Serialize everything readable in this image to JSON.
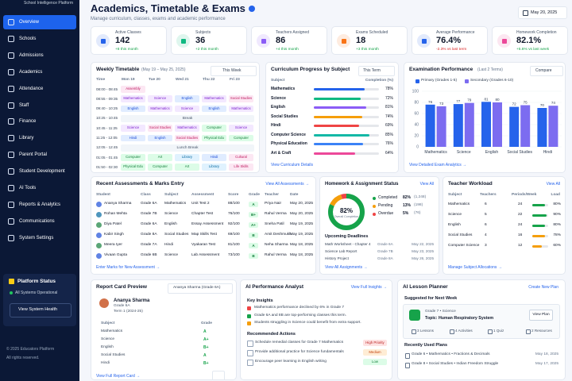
{
  "sidebar": {
    "brand": "School Intelligence Platform",
    "nav": [
      "Overview",
      "Schools",
      "Admissions",
      "Academics",
      "Attendance",
      "Staff",
      "Finance",
      "Library",
      "Parent Portal",
      "Student Development",
      "AI Tools",
      "Reports & Analytics",
      "Communications",
      "System Settings"
    ],
    "status": {
      "title": "Platform Status",
      "state": "All Systems Operational",
      "button": "View System Health"
    },
    "footer": [
      "© 2025 Educators Platform",
      "All rights reserved."
    ]
  },
  "header": {
    "title": "Academics, Timetable & Exams",
    "subtitle": "Manage curriculum, classes, exams and academic performance",
    "date": "May 20, 2025"
  },
  "kpis": [
    {
      "label": "Active Classes",
      "value": "142",
      "delta": "+8 this month",
      "color": "#2563eb"
    },
    {
      "label": "Subjects",
      "value": "36",
      "delta": "+2 this month",
      "color": "#10b981"
    },
    {
      "label": "Teachers Assigned",
      "value": "86",
      "delta": "+4 this month",
      "color": "#8b5cf6"
    },
    {
      "label": "Exams Scheduled",
      "value": "18",
      "delta": "+3 this month",
      "color": "#f97316"
    },
    {
      "label": "Average Performance",
      "value": "76.4%",
      "delta": "-2.3% vs last term",
      "color": "#2563eb"
    },
    {
      "label": "Homework Completion",
      "value": "82.1%",
      "delta": "+5.6% vs last week",
      "color": "#ec4899"
    }
  ],
  "timetable": {
    "title": "Weekly Timetable",
    "range": "(May 19 – May 25, 2025)",
    "filter": "This Week",
    "columns": [
      "Time",
      "Mon 19",
      "Tue 20",
      "Wed 21",
      "Thu 22",
      "Fri 23"
    ],
    "rows": [
      [
        "08:00 - 08:45",
        "Assembly",
        null,
        null,
        null,
        null
      ],
      [
        "08:55 - 09:35",
        "Mathematics",
        "Science",
        "English",
        "Mathematics",
        "Social Studies"
      ],
      [
        "09:40 - 10:25",
        "English",
        "Mathematics",
        "Science",
        "English",
        "Mathematics"
      ],
      [
        "10:25 - 10:45",
        "Break"
      ],
      [
        "10:45 - 11:25",
        "Science",
        "Social Studies",
        "Mathematics",
        "Computer",
        "Science"
      ],
      [
        "11:25 - 12:05",
        "Hindi",
        "English",
        "Social Studies",
        "Physical Edu",
        "Computer"
      ],
      [
        "12:05 - 12:45",
        "Lunch Break"
      ],
      [
        "01:05 - 01:45",
        "Computer",
        "Art",
        "Library",
        "Hindi",
        "Cultural"
      ],
      [
        "01:50 - 02:30",
        "Physical Edu",
        "Computer",
        "Art",
        "Library",
        "Life Skills"
      ]
    ]
  },
  "chart_data": [
    {
      "type": "hbar",
      "title": "Curriculum Progress by Subject",
      "filter": "This Term",
      "headers": [
        "Subject",
        "Completion (%)"
      ],
      "categories": [
        "Mathematics",
        "Science",
        "English",
        "Social Studies",
        "Hindi",
        "Computer Science",
        "Physical Education",
        "Art & Craft"
      ],
      "values": [
        78,
        72,
        81,
        74,
        69,
        85,
        76,
        64
      ],
      "value_labels": [
        "78%",
        "72%",
        "81%",
        "74%",
        "69%",
        "85%",
        "76%",
        "64%"
      ],
      "colors": [
        "#2563eb",
        "#10b981",
        "#8b5cf6",
        "#f59e0b",
        "#ef4444",
        "#14b8a6",
        "#3b82f6",
        "#ec4899"
      ],
      "xlim": [
        0,
        100
      ],
      "link": "View Curriculum Details"
    },
    {
      "type": "bar",
      "title": "Examination Performance",
      "subtitle": "(Last 2 Terms)",
      "filter": "Compare",
      "categories": [
        "Mathematics",
        "Science",
        "English",
        "Social Studies",
        "Hindi"
      ],
      "series": [
        {
          "name": "Primary (Grades 1-5)",
          "color": "#2563eb",
          "values": [
            76,
            77,
            81,
            72,
            70
          ]
        },
        {
          "name": "Secondary (Grades 6-10)",
          "color": "#7c6cf0",
          "values": [
            73,
            79,
            80,
            75,
            74
          ]
        }
      ],
      "ylim": [
        0,
        100
      ],
      "yticks": [
        0,
        20,
        40,
        60,
        80,
        100
      ],
      "grid": true,
      "link": "View Detailed Exam Analytics →"
    },
    {
      "type": "donut",
      "title": "Homework & Assignment Status",
      "link": "View All",
      "categories": [
        "Completed",
        "Pending",
        "Overdue"
      ],
      "values": [
        82,
        13,
        5
      ],
      "value_labels": [
        "82%",
        "13%",
        "5%"
      ],
      "counts": [
        "(1,248)",
        "(198)",
        "(76)"
      ],
      "colors": [
        "#16a34a",
        "#f59e0b",
        "#ef4444"
      ],
      "center_label": "Overall Completion"
    }
  ],
  "assessments": {
    "title": "Recent Assessments & Marks Entry",
    "link": "View All Assessments →",
    "columns": [
      "Student",
      "Class",
      "Subject",
      "Assessment",
      "Score",
      "Grade",
      "Teacher",
      "Date"
    ],
    "rows": [
      [
        "Ananya Sharma",
        "Grade 6A",
        "Mathematics",
        "Unit Test 2",
        "88/100",
        "A",
        "Priya Nair",
        "May 20, 2025"
      ],
      [
        "Rohan Mehta",
        "Grade 7B",
        "Science",
        "Chapter Test",
        "76/100",
        "B+",
        "Rahul Verma",
        "May 20, 2025"
      ],
      [
        "Diya Patel",
        "Grade 6A",
        "English",
        "Essay Assessment",
        "92/100",
        "A+",
        "Sneha Patil",
        "May 19, 2025"
      ],
      [
        "Kabir Singh",
        "Grade 8A",
        "Social Studies",
        "Map Skills Test",
        "69/100",
        "B",
        "Amit Deshmukh",
        "May 19, 2025"
      ],
      [
        "Meera Iyer",
        "Grade 7A",
        "Hindi",
        "Vyakaran Test",
        "81/100",
        "A",
        "Neha Sharma",
        "May 18, 2025"
      ],
      [
        "Vivaan Gupta",
        "Grade 6B",
        "Science",
        "Lab Assessment",
        "73/100",
        "B",
        "Rahul Verma",
        "May 18, 2025"
      ]
    ],
    "footer": "Enter Marks for New Assessment →"
  },
  "deadlines": {
    "title": "Upcoming Deadlines",
    "items": [
      [
        "Math Worksheet - Chapter 4",
        "Grade 6A",
        "May 22, 2025"
      ],
      [
        "Science Lab Report",
        "Grade 7B",
        "May 23, 2025"
      ],
      [
        "History Project",
        "Grade 8A",
        "May 26, 2025"
      ]
    ],
    "link": "View All Assignments →"
  },
  "workload": {
    "title": "Teacher Workload",
    "link": "View All",
    "columns": [
      "Subject",
      "Teachers",
      "Periods/Week",
      "Load"
    ],
    "rows": [
      [
        "Mathematics",
        "6",
        "24"
      ],
      [
        "Science",
        "5",
        "22"
      ],
      [
        "English",
        "6",
        "24"
      ],
      [
        "Social Studies",
        "4",
        "16"
      ],
      [
        "Computer Science",
        "3",
        "12"
      ]
    ],
    "load": [
      80,
      90,
      80,
      78,
      60
    ],
    "load_labels": [
      "80%",
      "90%",
      "80%",
      "78%",
      "60%"
    ],
    "footer": "Manage Subject Allocations →"
  },
  "report_card": {
    "title": "Report Card Preview",
    "selector": "Ananya Sharma (Grade 6A)",
    "name": "Ananya Sharma",
    "grade": "Grade 6A",
    "term": "Term 1 (2024-25)",
    "columns": [
      "Subject",
      "Grade"
    ],
    "rows": [
      [
        "Mathematics",
        "A"
      ],
      [
        "Science",
        "A+"
      ],
      [
        "English",
        "B+"
      ],
      [
        "Social Studies",
        "A"
      ],
      [
        "Hindi",
        "B+"
      ]
    ],
    "link": "View Full Report Card →"
  },
  "ai_analyst": {
    "title": "AI Performance Analyst",
    "link": "View Full Insights →",
    "insights_title": "Key Insights",
    "insights": [
      "Mathematics performance declined by 6% in Grade 7",
      "Grade 6A and 8B are top-performing classes this term.",
      "Students struggling in Science could benefit from extra support."
    ],
    "actions_title": "Recommended Actions",
    "actions": [
      [
        "Schedule remedial classes for Grade 7 Mathematics",
        "High Priority"
      ],
      [
        "Provide additional practice for Science fundamentals",
        "Medium"
      ],
      [
        "Encourage peer learning in English writing",
        "Low"
      ]
    ]
  },
  "lesson_planner": {
    "title": "AI Lesson Planner",
    "link": "Create New Plan",
    "suggested_title": "Suggested for Next Week",
    "suggested": {
      "grade": "Grade 7 • Science",
      "topic": "Topic: Human Respiratory System",
      "button": "View Plan",
      "stats": [
        "3 Lessons",
        "4 Activities",
        "1 Quiz",
        "2 Resources"
      ]
    },
    "recent_title": "Recently Used Plans",
    "recent": [
      [
        "Grade 6 • Mathematics • Fractions & Decimals",
        "May 18, 2025"
      ],
      [
        "Grade 8 • Social Studies • Indian Freedom Struggle",
        "May 17, 2025"
      ]
    ]
  }
}
